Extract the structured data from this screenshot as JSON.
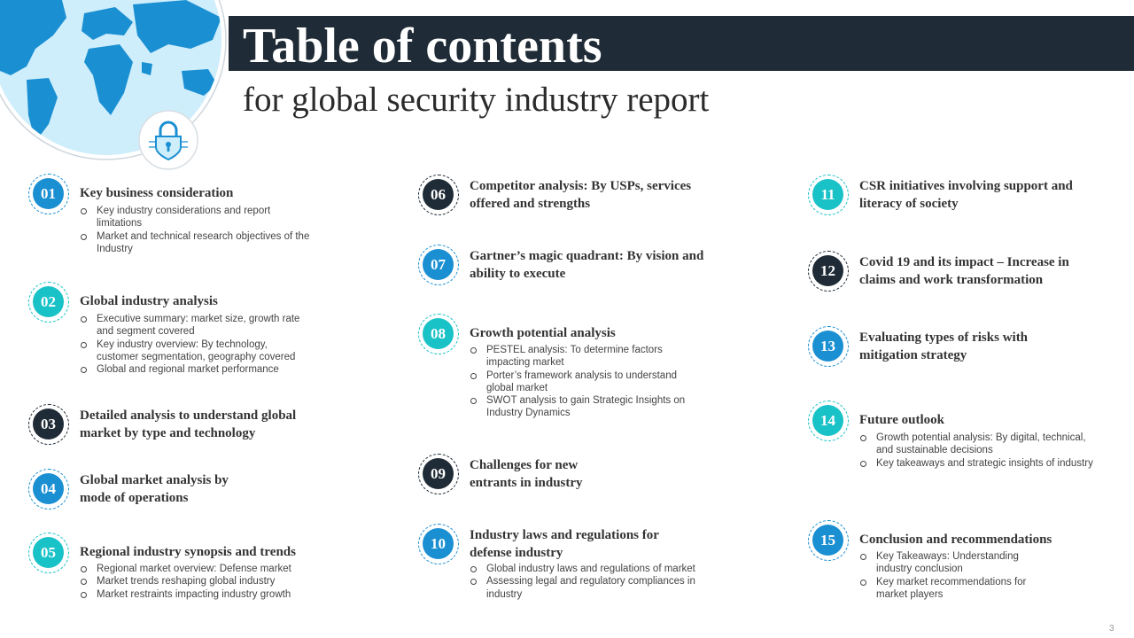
{
  "header": {
    "title": "Table of contents",
    "subtitle": "for global security industry report"
  },
  "colors": {
    "dark": "#1f2b36",
    "blue": "#1a8fd2",
    "teal": "#19c2c7",
    "globe_light": "#cfeefc",
    "globe_land": "#1a8fd2"
  },
  "icons": {
    "globe": "globe-icon",
    "lock": "padlock-icon"
  },
  "items": [
    {
      "num": "01",
      "title": "Key business consideration",
      "bullets": [
        "Key industry considerations and report limitations",
        "Market and technical research objectives of the Industry"
      ]
    },
    {
      "num": "02",
      "title": "Global industry analysis",
      "bullets": [
        "Executive summary: market size, growth rate and segment covered",
        "Key industry overview: By technology, customer segmentation, geography covered",
        "Global and regional market performance"
      ]
    },
    {
      "num": "03",
      "title": "Detailed analysis to understand global market by type and technology",
      "bullets": []
    },
    {
      "num": "04",
      "title": "Global market analysis by mode of operations",
      "bullets": []
    },
    {
      "num": "05",
      "title": "Regional industry synopsis and trends",
      "bullets": [
        "Regional market overview: Defense market",
        "Market trends reshaping global industry",
        "Market restraints impacting industry growth"
      ]
    },
    {
      "num": "06",
      "title": "Competitor analysis: By USPs, services offered and strengths",
      "bullets": []
    },
    {
      "num": "07",
      "title": "Gartner’s magic quadrant: By vision and ability to execute",
      "bullets": []
    },
    {
      "num": "08",
      "title": "Growth potential analysis",
      "bullets": [
        "PESTEL analysis: To determine factors impacting market",
        "Porter’s framework analysis to understand global market",
        "SWOT analysis to gain Strategic Insights on Industry Dynamics"
      ]
    },
    {
      "num": "09",
      "title": "Challenges for new entrants in industry",
      "bullets": []
    },
    {
      "num": "10",
      "title": "Industry laws and regulations for defense industry",
      "bullets": [
        "Global industry laws and regulations of market",
        "Assessing legal and regulatory compliances in industry"
      ]
    },
    {
      "num": "11",
      "title": "CSR initiatives involving support and literacy of society",
      "bullets": []
    },
    {
      "num": "12",
      "title": "Covid 19 and its impact – Increase in claims and work transformation",
      "bullets": []
    },
    {
      "num": "13",
      "title": "Evaluating types of risks with mitigation strategy",
      "bullets": []
    },
    {
      "num": "14",
      "title": "Future outlook",
      "bullets": [
        "Growth potential analysis: By digital, technical, and sustainable decisions",
        "Key takeaways and strategic insights of industry"
      ]
    },
    {
      "num": "15",
      "title": "Conclusion and recommendations",
      "bullets": [
        "Key Takeaways: Understanding industry conclusion",
        "Key market recommendations for market players"
      ]
    }
  ],
  "page_number": "3"
}
